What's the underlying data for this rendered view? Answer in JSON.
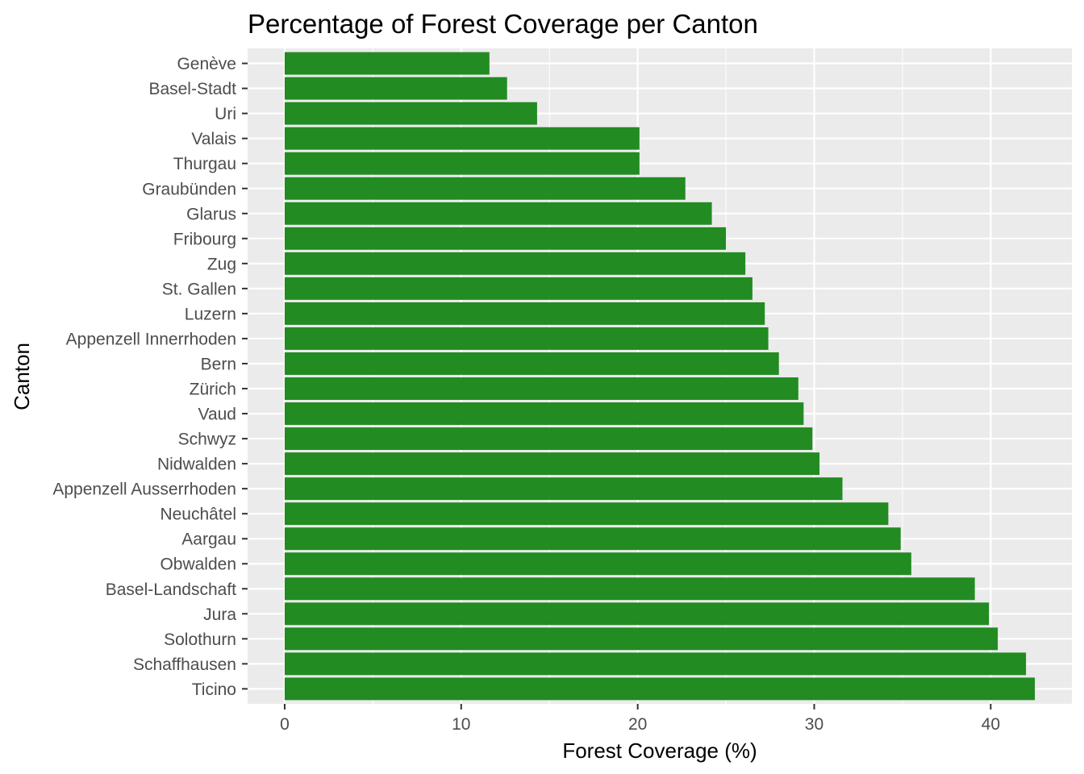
{
  "chart_data": {
    "type": "bar",
    "orientation": "horizontal",
    "title": "Percentage of Forest Coverage per Canton",
    "xlabel": "Forest Coverage (%)",
    "ylabel": "Canton",
    "xlim": [
      -2.1,
      44.6
    ],
    "xticks": [
      0,
      10,
      20,
      30,
      40
    ],
    "grid": true,
    "categories": [
      "Genève",
      "Basel-Stadt",
      "Uri",
      "Valais",
      "Thurgau",
      "Graubünden",
      "Glarus",
      "Fribourg",
      "Zug",
      "St. Gallen",
      "Luzern",
      "Appenzell Innerrhoden",
      "Bern",
      "Zürich",
      "Vaud",
      "Schwyz",
      "Nidwalden",
      "Appenzell Ausserrhoden",
      "Neuchâtel",
      "Aargau",
      "Obwalden",
      "Basel-Landschaft",
      "Jura",
      "Solothurn",
      "Schaffhausen",
      "Ticino"
    ],
    "values": [
      11.6,
      12.6,
      14.3,
      20.1,
      20.1,
      22.7,
      24.2,
      25.0,
      26.1,
      26.5,
      27.2,
      27.4,
      28.0,
      29.1,
      29.4,
      29.9,
      30.3,
      31.6,
      34.2,
      34.9,
      35.5,
      39.1,
      39.9,
      40.4,
      42.0,
      42.5
    ],
    "bar_color": "#228B22",
    "panel_color": "#EBEBEB",
    "grid_color": "#FFFFFF"
  }
}
